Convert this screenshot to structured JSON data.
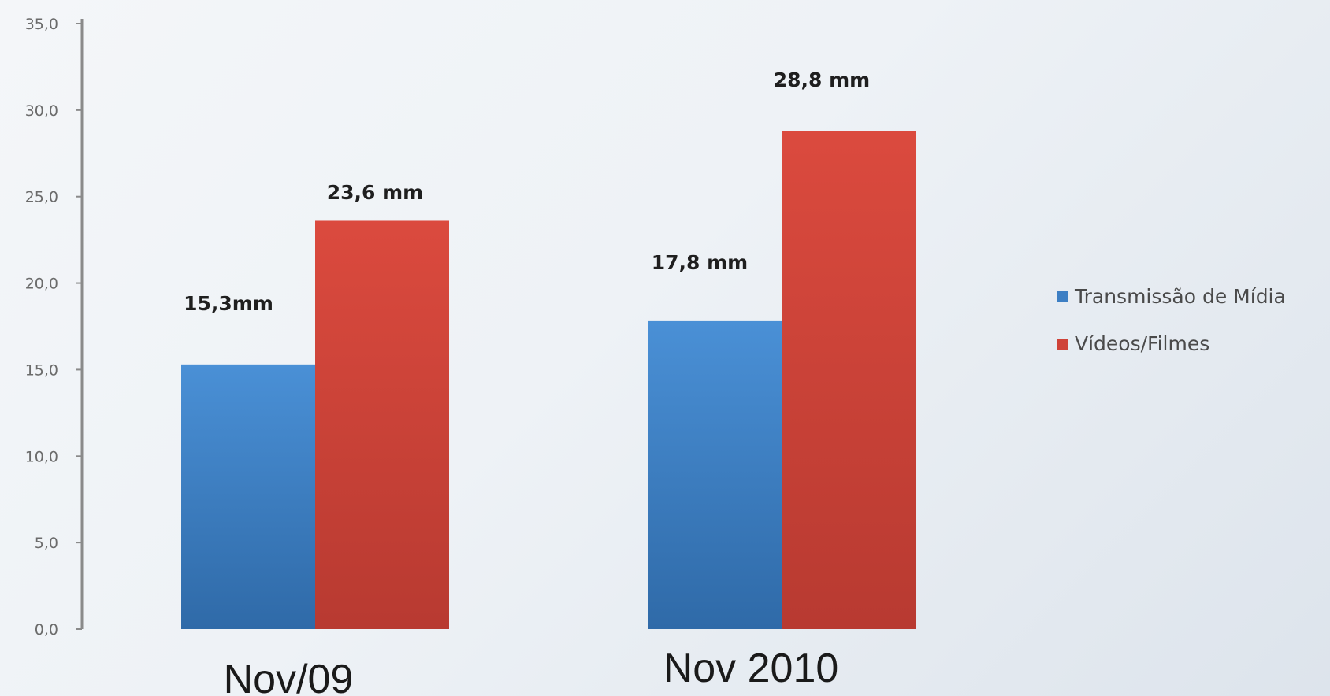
{
  "chart_data": {
    "type": "bar",
    "categories": [
      "Nov/09",
      "Nov 2010"
    ],
    "series": [
      {
        "name": "Transmissão de Mídia",
        "values": [
          15.3,
          17.8
        ],
        "labels": [
          "15,3mm",
          "17,8 mm"
        ],
        "color": "#3d7fc4"
      },
      {
        "name": "Vídeos/Filmes",
        "values": [
          23.6,
          28.8
        ],
        "labels": [
          "23,6 mm",
          "28,8 mm"
        ],
        "color": "#cf4238"
      }
    ],
    "ylim": [
      0,
      35
    ],
    "yticks": [
      "0,0",
      "5,0",
      "10,0",
      "15,0",
      "20,0",
      "25,0",
      "30,0",
      "35,0"
    ],
    "ytick_values": [
      0,
      5,
      10,
      15,
      20,
      25,
      30,
      35
    ],
    "grid": false,
    "legend_position": "right"
  }
}
